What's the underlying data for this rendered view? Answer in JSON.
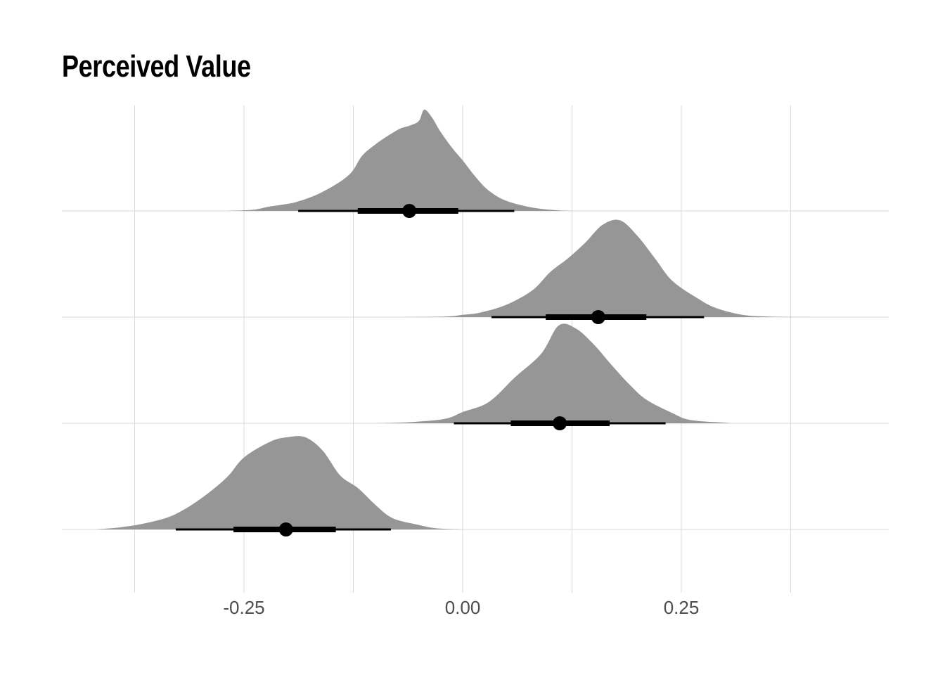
{
  "chart_data": {
    "type": "halfeye",
    "title": "Perceived Value",
    "xlabel": "",
    "ylabel": "",
    "xlim": [
      -0.42,
      0.49
    ],
    "x_ticks": [
      -0.25,
      0.0,
      0.25
    ],
    "x_tick_labels": [
      "-0.25",
      "0.00",
      "0.25"
    ],
    "grid": true,
    "fill_color": "#969696",
    "interval_color": "#000000",
    "series": [
      {
        "median": -0.061,
        "interval_66": [
          -0.12,
          -0.005
        ],
        "interval_95": [
          -0.188,
          0.059
        ],
        "density": [
          [
            -0.27,
            0
          ],
          [
            -0.24,
            0.01
          ],
          [
            -0.22,
            0.04
          ],
          [
            -0.19,
            0.08
          ],
          [
            -0.16,
            0.17
          ],
          [
            -0.13,
            0.32
          ],
          [
            -0.115,
            0.49
          ],
          [
            -0.1,
            0.59
          ],
          [
            -0.085,
            0.67
          ],
          [
            -0.072,
            0.73
          ],
          [
            -0.06,
            0.76
          ],
          [
            -0.05,
            0.8
          ],
          [
            -0.044,
            0.9
          ],
          [
            -0.035,
            0.83
          ],
          [
            -0.025,
            0.7
          ],
          [
            -0.012,
            0.56
          ],
          [
            0.0,
            0.45
          ],
          [
            0.015,
            0.3
          ],
          [
            0.03,
            0.18
          ],
          [
            0.05,
            0.09
          ],
          [
            0.08,
            0.03
          ],
          [
            0.11,
            0.005
          ],
          [
            0.14,
            0
          ]
        ]
      },
      {
        "median": 0.155,
        "interval_66": [
          0.095,
          0.21
        ],
        "interval_95": [
          0.033,
          0.276
        ],
        "density": [
          [
            -0.08,
            0
          ],
          [
            -0.02,
            0.005
          ],
          [
            0.0,
            0.02
          ],
          [
            0.02,
            0.04
          ],
          [
            0.05,
            0.11
          ],
          [
            0.08,
            0.24
          ],
          [
            0.1,
            0.4
          ],
          [
            0.12,
            0.52
          ],
          [
            0.14,
            0.66
          ],
          [
            0.16,
            0.82
          ],
          [
            0.18,
            0.86
          ],
          [
            0.2,
            0.72
          ],
          [
            0.22,
            0.52
          ],
          [
            0.24,
            0.32
          ],
          [
            0.27,
            0.16
          ],
          [
            0.29,
            0.08
          ],
          [
            0.32,
            0.02
          ],
          [
            0.35,
            0.005
          ],
          [
            0.4,
            0
          ]
        ]
      },
      {
        "median": 0.111,
        "interval_66": [
          0.055,
          0.168
        ],
        "interval_95": [
          -0.01,
          0.232
        ],
        "density": [
          [
            -0.1,
            0
          ],
          [
            -0.06,
            0.01
          ],
          [
            -0.02,
            0.04
          ],
          [
            0.0,
            0.1
          ],
          [
            0.03,
            0.19
          ],
          [
            0.06,
            0.41
          ],
          [
            0.09,
            0.62
          ],
          [
            0.11,
            0.87
          ],
          [
            0.13,
            0.84
          ],
          [
            0.15,
            0.7
          ],
          [
            0.17,
            0.52
          ],
          [
            0.19,
            0.35
          ],
          [
            0.21,
            0.21
          ],
          [
            0.24,
            0.09
          ],
          [
            0.26,
            0.03
          ],
          [
            0.3,
            0.005
          ],
          [
            0.31,
            0
          ]
        ]
      },
      {
        "median": -0.202,
        "interval_66": [
          -0.262,
          -0.145
        ],
        "interval_95": [
          -0.328,
          -0.082
        ],
        "density": [
          [
            -0.42,
            0
          ],
          [
            -0.39,
            0.02
          ],
          [
            -0.36,
            0.06
          ],
          [
            -0.33,
            0.13
          ],
          [
            -0.3,
            0.27
          ],
          [
            -0.27,
            0.46
          ],
          [
            -0.25,
            0.64
          ],
          [
            -0.22,
            0.78
          ],
          [
            -0.2,
            0.82
          ],
          [
            -0.18,
            0.82
          ],
          [
            -0.16,
            0.7
          ],
          [
            -0.14,
            0.48
          ],
          [
            -0.12,
            0.37
          ],
          [
            -0.1,
            0.22
          ],
          [
            -0.08,
            0.1
          ],
          [
            -0.05,
            0.04
          ],
          [
            -0.03,
            0.01
          ],
          [
            0.0,
            0
          ]
        ]
      }
    ]
  }
}
